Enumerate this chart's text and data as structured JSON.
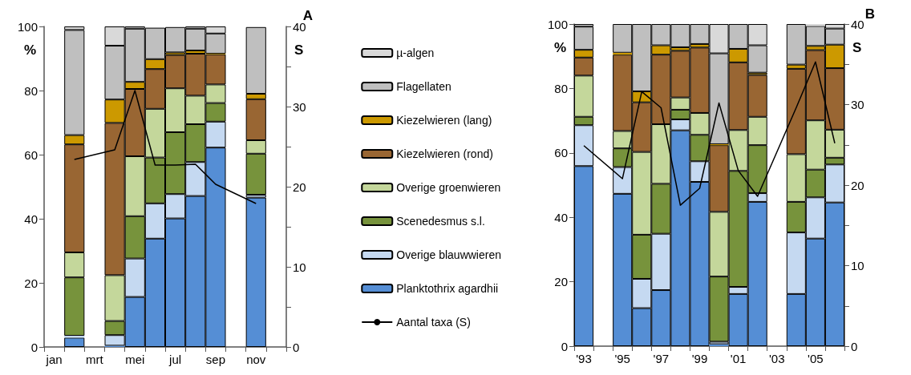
{
  "chart_data": [
    {
      "type": "bar",
      "title": "A",
      "stacked": true,
      "legend": "right",
      "marker": "none",
      "ylabel": "%",
      "y2label": "S",
      "categories": [
        "jan",
        null,
        "mrt",
        null,
        "mei",
        null,
        "jul",
        null,
        "sep",
        null,
        "nov",
        null
      ],
      "ylim": [
        0,
        100
      ],
      "yticks": [
        0,
        20,
        40,
        60,
        80,
        100
      ],
      "y2lim": [
        0,
        40
      ],
      "y2ticks": [
        0,
        {
          "value": 5,
          "label": null
        },
        10,
        {
          "value": 15,
          "label": null
        },
        20,
        {
          "value": 25,
          "label": null
        },
        30,
        {
          "value": 35,
          "label": null
        },
        40
      ],
      "series": [
        {
          "name": "Planktothrix agardhii",
          "color": "#558ed5",
          "values": [
            null,
            2.9,
            null,
            0.4,
            15.6,
            33.8,
            40.1,
            47.1,
            62.2,
            null,
            46.6,
            null
          ]
        },
        {
          "name": "Overige blauwwieren",
          "color": "#c5d9f1",
          "values": [
            null,
            0.6,
            null,
            3.3,
            12.0,
            11.0,
            7.6,
            10.6,
            8.1,
            null,
            0.9,
            null
          ]
        },
        {
          "name": "Scenedesmus s.l.",
          "color": "#77933c",
          "values": [
            null,
            18.2,
            null,
            4.4,
            13.2,
            14.3,
            19.3,
            11.8,
            5.8,
            null,
            12.8,
            null
          ]
        },
        {
          "name": "Overige groenwieren",
          "color": "#c4d79b",
          "values": [
            null,
            7.8,
            null,
            14.3,
            18.7,
            15.2,
            13.7,
            8.9,
            5.8,
            null,
            4.2,
            null
          ]
        },
        {
          "name": "Kiezelwieren (rond)",
          "color": "#996633",
          "values": [
            null,
            33.7,
            null,
            47.5,
            21.0,
            12.4,
            10.4,
            13.1,
            9.4,
            null,
            12.8,
            null
          ]
        },
        {
          "name": "Kiezelwieren (lang)",
          "color": "#cc9900",
          "values": [
            null,
            2.9,
            null,
            7.3,
            2.2,
            3.1,
            0.8,
            1.0,
            0.2,
            null,
            1.7,
            null
          ]
        },
        {
          "name": "Flagellaten",
          "color": "#bfbfbf",
          "values": [
            null,
            32.8,
            null,
            16.8,
            16.6,
            9.8,
            7.9,
            6.8,
            6.3,
            null,
            20.8,
            null
          ]
        },
        {
          "name": "µ-algen",
          "color": "#d9d9d9",
          "values": [
            null,
            1.1,
            null,
            6.0,
            0.7,
            null,
            null,
            0.7,
            2.2,
            null,
            null,
            null
          ]
        },
        {
          "name": "Aantal taxa (S)",
          "type": "line",
          "axis": "y2",
          "color": "#000000",
          "values": [
            null,
            23.4,
            null,
            24.6,
            32.0,
            22.7,
            22.7,
            22.8,
            20.3,
            null,
            17.9,
            null
          ]
        }
      ]
    },
    {
      "type": "bar",
      "title": "B",
      "stacked": true,
      "marker": "none",
      "ylabel": "%",
      "y2label": "S",
      "categories": [
        "'93",
        null,
        "'95",
        null,
        "'97",
        null,
        "'99",
        null,
        "'01",
        null,
        "'03",
        null,
        "'05",
        null
      ],
      "ylim": [
        0,
        100
      ],
      "yticks": [
        0,
        20,
        40,
        60,
        80,
        100
      ],
      "y2lim": [
        0,
        40
      ],
      "y2ticks": [
        0,
        {
          "value": 5,
          "label": null
        },
        10,
        {
          "value": 15,
          "label": null
        },
        20,
        {
          "value": 25,
          "label": null
        },
        30,
        {
          "value": 35,
          "label": null
        },
        40
      ],
      "series": [
        {
          "color": "#558ed5",
          "values": [
            55.9,
            null,
            47.3,
            11.8,
            17.4,
            67.0,
            51.0,
            0.6,
            16.2,
            44.8,
            null,
            16.2,
            33.4,
            44.6
          ]
        },
        {
          "color": "#c5d9f1",
          "values": [
            12.7,
            null,
            8.3,
            9.1,
            17.5,
            3.4,
            6.4,
            0.8,
            2.2,
            2.7,
            null,
            19.1,
            12.8,
            11.8
          ]
        },
        {
          "color": "#77933c",
          "values": [
            2.6,
            null,
            5.8,
            13.7,
            15.5,
            3.0,
            8.2,
            20.2,
            36.0,
            14.9,
            null,
            9.5,
            8.6,
            2.1
          ]
        },
        {
          "color": "#c4d79b",
          "values": [
            12.8,
            null,
            5.4,
            25.7,
            18.5,
            3.8,
            6.8,
            20.1,
            12.7,
            8.8,
            null,
            14.8,
            15.3,
            8.7
          ]
        },
        {
          "color": "#996633",
          "values": [
            5.6,
            null,
            23.7,
            15.4,
            21.6,
            14.5,
            20.3,
            20.7,
            21.0,
            13.0,
            null,
            26.5,
            21.8,
            19.1
          ]
        },
        {
          "color": "#cc9900",
          "values": [
            2.4,
            null,
            0.6,
            3.4,
            2.9,
            1.1,
            1.1,
            0.3,
            4.2,
            0.7,
            null,
            1.3,
            1.3,
            7.3
          ]
        },
        {
          "color": "#bfbfbf",
          "values": [
            7.2,
            null,
            8.9,
            20.9,
            6.6,
            7.2,
            6.2,
            28.2,
            7.7,
            8.5,
            null,
            12.6,
            6.2,
            5.0
          ]
        },
        {
          "color": "#d9d9d9",
          "values": [
            0.8,
            null,
            null,
            null,
            null,
            null,
            null,
            9.1,
            null,
            6.6,
            null,
            null,
            0.6,
            1.4
          ]
        },
        {
          "type": "line",
          "axis": "y2",
          "color": "#000000",
          "values": [
            24.9,
            null,
            20.8,
            31.6,
            29.6,
            17.5,
            19.6,
            30.2,
            21.8,
            18.6,
            null,
            29.6,
            35.3,
            25.2
          ]
        }
      ]
    }
  ]
}
